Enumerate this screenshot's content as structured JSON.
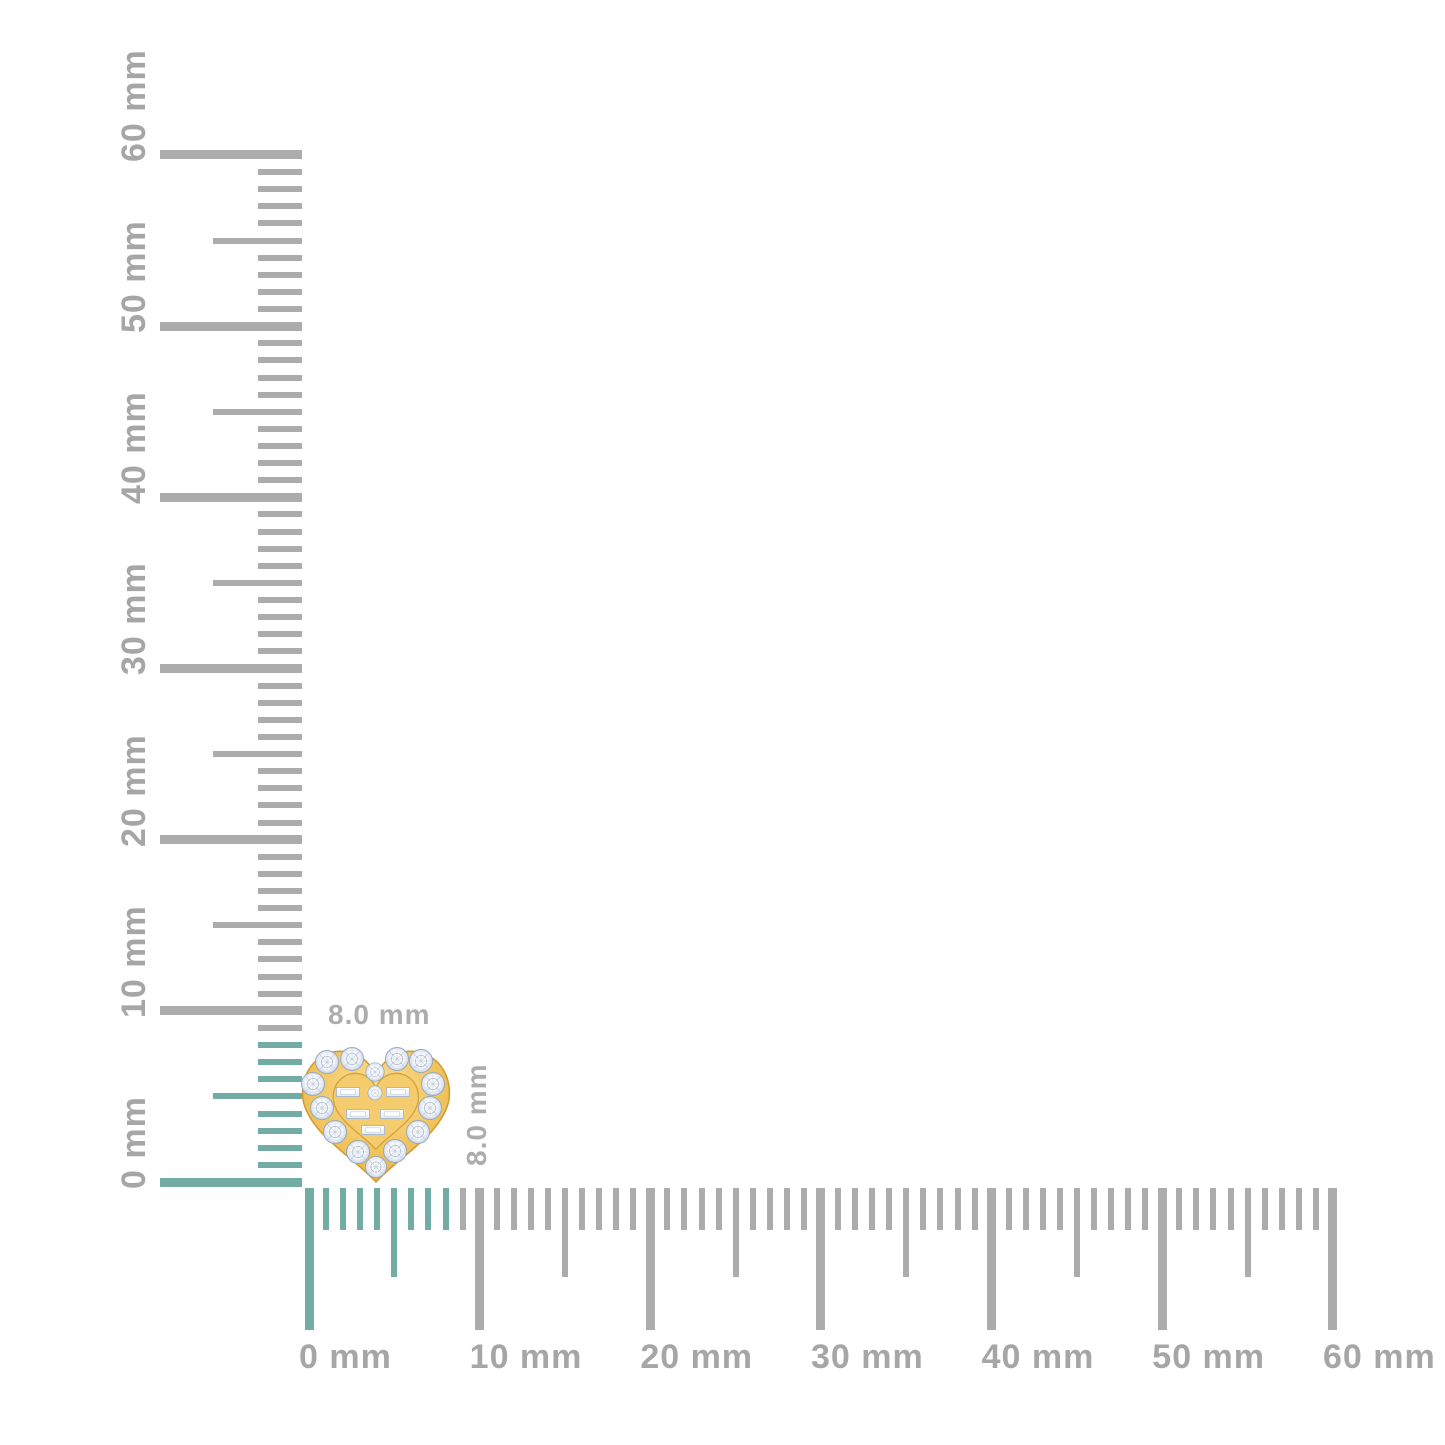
{
  "page": {
    "background": "#ffffff"
  },
  "colors": {
    "tick_gray": "#acacac",
    "tick_highlight_teal": "#72aca4",
    "ruler_label_gray": "#a6a6a6",
    "item_label_gray": "#adadad",
    "gold": "#f2c566",
    "diamond_pale": "#e8edf5"
  },
  "rulers": {
    "unit": "mm",
    "vertical": {
      "min_mm": 0,
      "max_mm": 60,
      "minor_step_mm": 1,
      "medium_step_mm": 5,
      "major_step_mm": 10,
      "highlight_range_mm": [
        0,
        8
      ],
      "labels": [
        "0 mm",
        "10 mm",
        "20 mm",
        "30 mm",
        "40 mm",
        "50 mm",
        "60 mm"
      ]
    },
    "horizontal": {
      "min_mm": 0,
      "max_mm": 60,
      "minor_step_mm": 1,
      "medium_step_mm": 5,
      "major_step_mm": 10,
      "highlight_range_mm": [
        0,
        8
      ],
      "labels": [
        "0 mm",
        "10 mm",
        "20 mm",
        "30 mm",
        "40 mm",
        "50 mm",
        "60 mm"
      ]
    }
  },
  "item": {
    "kind": "heart-shaped-diamond-stud",
    "width_mm": 8.0,
    "height_mm": 8.0,
    "width_label": "8.0 mm",
    "height_label": "8.0 mm"
  }
}
